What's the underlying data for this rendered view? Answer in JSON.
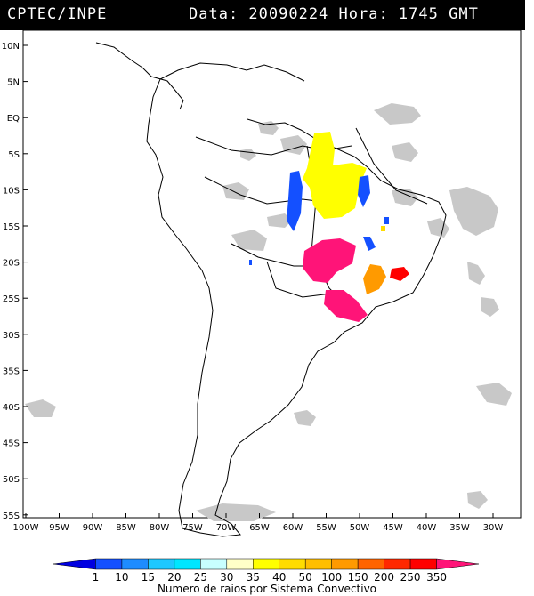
{
  "header": {
    "source": "CPTEC/INPE",
    "datetime": "Data: 20090224 Hora: 1745 GMT"
  },
  "map": {
    "lat_labels": [
      "10N",
      "5N",
      "EQ",
      "5S",
      "10S",
      "15S",
      "20S",
      "25S",
      "30S",
      "35S",
      "40S",
      "45S",
      "50S",
      "55S"
    ],
    "lon_labels": [
      "100W",
      "95W",
      "90W",
      "85W",
      "80W",
      "75W",
      "70W",
      "65W",
      "60W",
      "55W",
      "50W",
      "45W",
      "40W",
      "35W",
      "30W"
    ],
    "colors": {
      "cloud": "#c8c8c8",
      "coast": "#000000",
      "yellow": "#ffff00",
      "blue": "#1450ff",
      "magenta": "#ff1478",
      "orange": "#ff9a00",
      "red": "#ff0000"
    },
    "lightning_clusters": [
      {
        "name": "north-cluster",
        "color_class": "35"
      },
      {
        "name": "central-west-cluster",
        "color_class": "1"
      },
      {
        "name": "central-east-cluster",
        "color_class": "1"
      },
      {
        "name": "mato-grosso-do-sul-cluster",
        "color_class": "350"
      },
      {
        "name": "parana-cluster",
        "color_class": "350"
      },
      {
        "name": "sao-paulo-cluster",
        "color_class": "100"
      },
      {
        "name": "rio-cluster",
        "color_class": "250"
      }
    ]
  },
  "legend": {
    "ticks": [
      "1",
      "10",
      "15",
      "20",
      "25",
      "30",
      "35",
      "40",
      "50",
      "100",
      "150",
      "200",
      "250",
      "350"
    ],
    "colors": [
      "#0000e0",
      "#1450ff",
      "#1e8cff",
      "#1ec8ff",
      "#00e6ff",
      "#c8ffff",
      "#ffffc8",
      "#ffff00",
      "#ffdc00",
      "#ffbe00",
      "#ff9a00",
      "#ff6400",
      "#ff2800",
      "#ff0000",
      "#ff1478"
    ],
    "caption": "Numero de raios por Sistema Convectivo"
  }
}
